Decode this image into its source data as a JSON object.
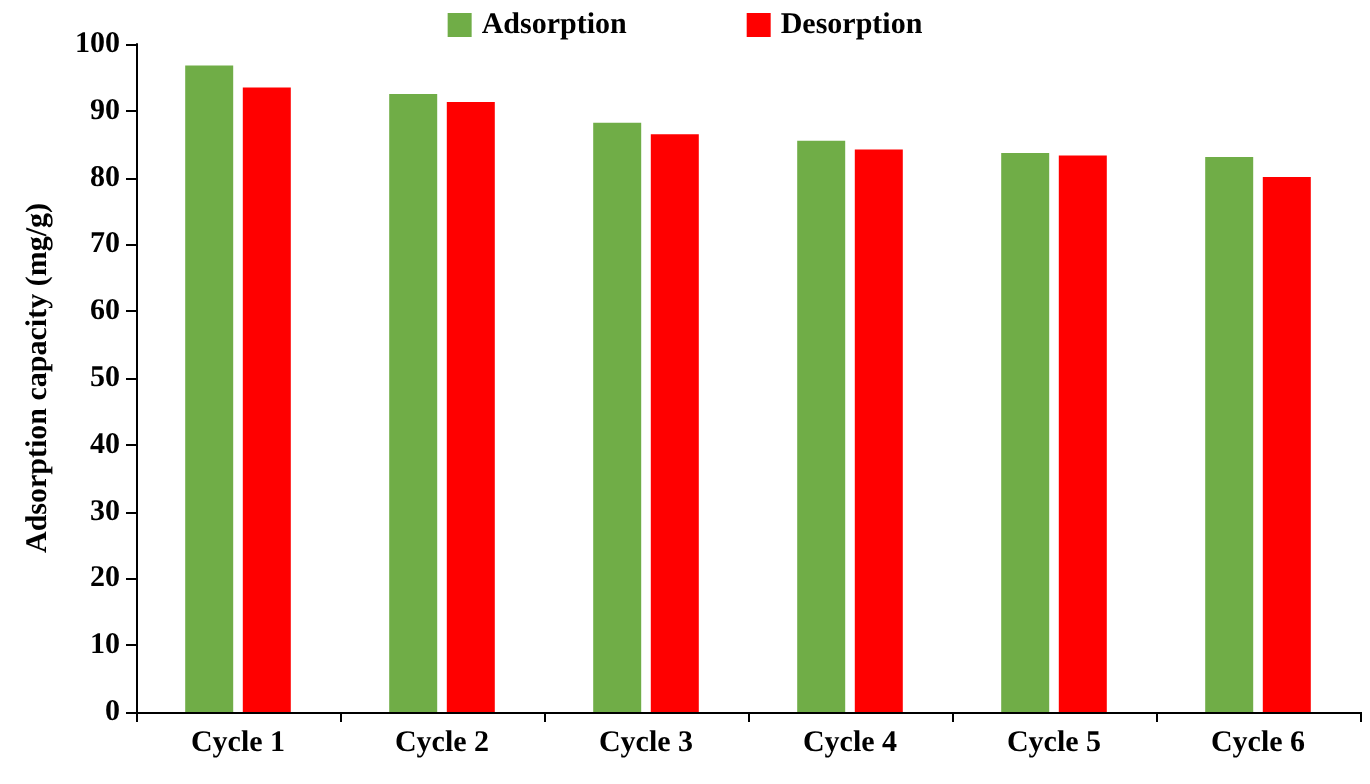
{
  "chart_data": {
    "type": "bar",
    "ylabel": "Adsorption capacity (mg/g)",
    "categories": [
      "Cycle 1",
      "Cycle 2",
      "Cycle 3",
      "Cycle 4",
      "Cycle 5",
      "Cycle 6"
    ],
    "series": [
      {
        "name": "Adsorption",
        "color": "#70ad47",
        "values": [
          96.8,
          92.5,
          88.2,
          85.5,
          83.7,
          83.1
        ]
      },
      {
        "name": "Desorption",
        "color": "#ff0000",
        "values": [
          93.5,
          91.3,
          86.5,
          84.2,
          83.3,
          80.1
        ]
      }
    ],
    "ylim": [
      0,
      100
    ],
    "yticks": [
      0,
      10,
      20,
      30,
      40,
      50,
      60,
      70,
      80,
      90,
      100
    ],
    "grid": false,
    "legend": "top"
  }
}
